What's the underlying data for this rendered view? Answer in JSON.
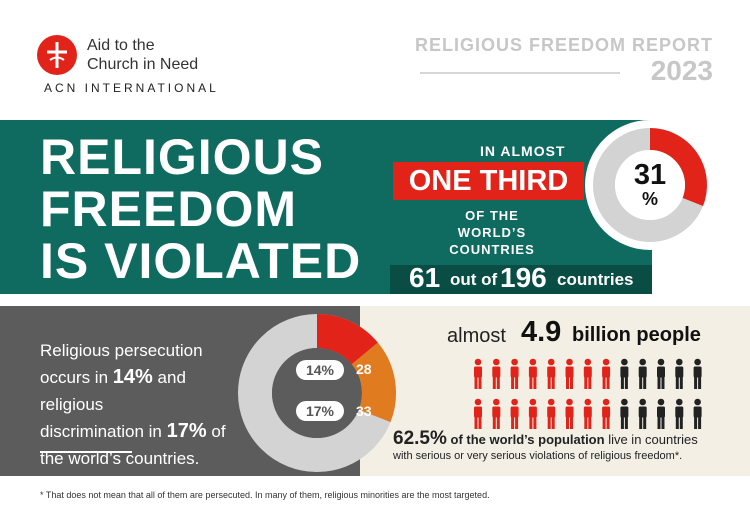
{
  "logo": {
    "line1": "Aid to the",
    "line2": "Church in Need",
    "org": "ACN INTERNATIONAL"
  },
  "report": {
    "title": "RELIGIOUS FREEDOM REPORT",
    "year": "2023"
  },
  "headline": [
    "RELIGIOUS",
    "FREEDOM",
    "IS VIOLATED"
  ],
  "one_third": {
    "top": "IN ALMOST",
    "highlight": "ONE THIRD",
    "bottom1": "OF THE WORLD’S",
    "bottom2": "COUNTRIES",
    "percent_number": "31",
    "percent_sign": "%",
    "percent_value": 31
  },
  "countries_stat": {
    "num1": "61",
    "mid": "out of",
    "num2": "196",
    "end": "countries"
  },
  "persecution": {
    "text1": "Religious persecution",
    "text2a": "occurs in",
    "pct1": "14%",
    "text2b": "and religious",
    "text3a": "discrimination in",
    "pct2": "17%",
    "text3b": "of",
    "text4": "the world’s countries."
  },
  "ring": {
    "label1": "14%",
    "count1": "28",
    "label2": "17%",
    "count2": "33",
    "values": [
      14,
      17
    ]
  },
  "people": {
    "prefix": "almost",
    "number": "4.9",
    "suffix": "billion people",
    "share_pct": "62.5%",
    "share_text1": "of the world’s population",
    "share_text2": "live in countries",
    "share_text3": "with serious or very serious violations of religious freedom*.",
    "share_value": 62.5
  },
  "footnote": "*  That does not mean that all of them are persecuted. In many of them, religious minorities are the most targeted.",
  "colors": {
    "red": "#e2231a",
    "teal": "#0f6b60",
    "dark_teal": "#0a4d45",
    "gray": "#5c5c5c",
    "orange": "#e07b20",
    "cream": "#f3efe5"
  }
}
